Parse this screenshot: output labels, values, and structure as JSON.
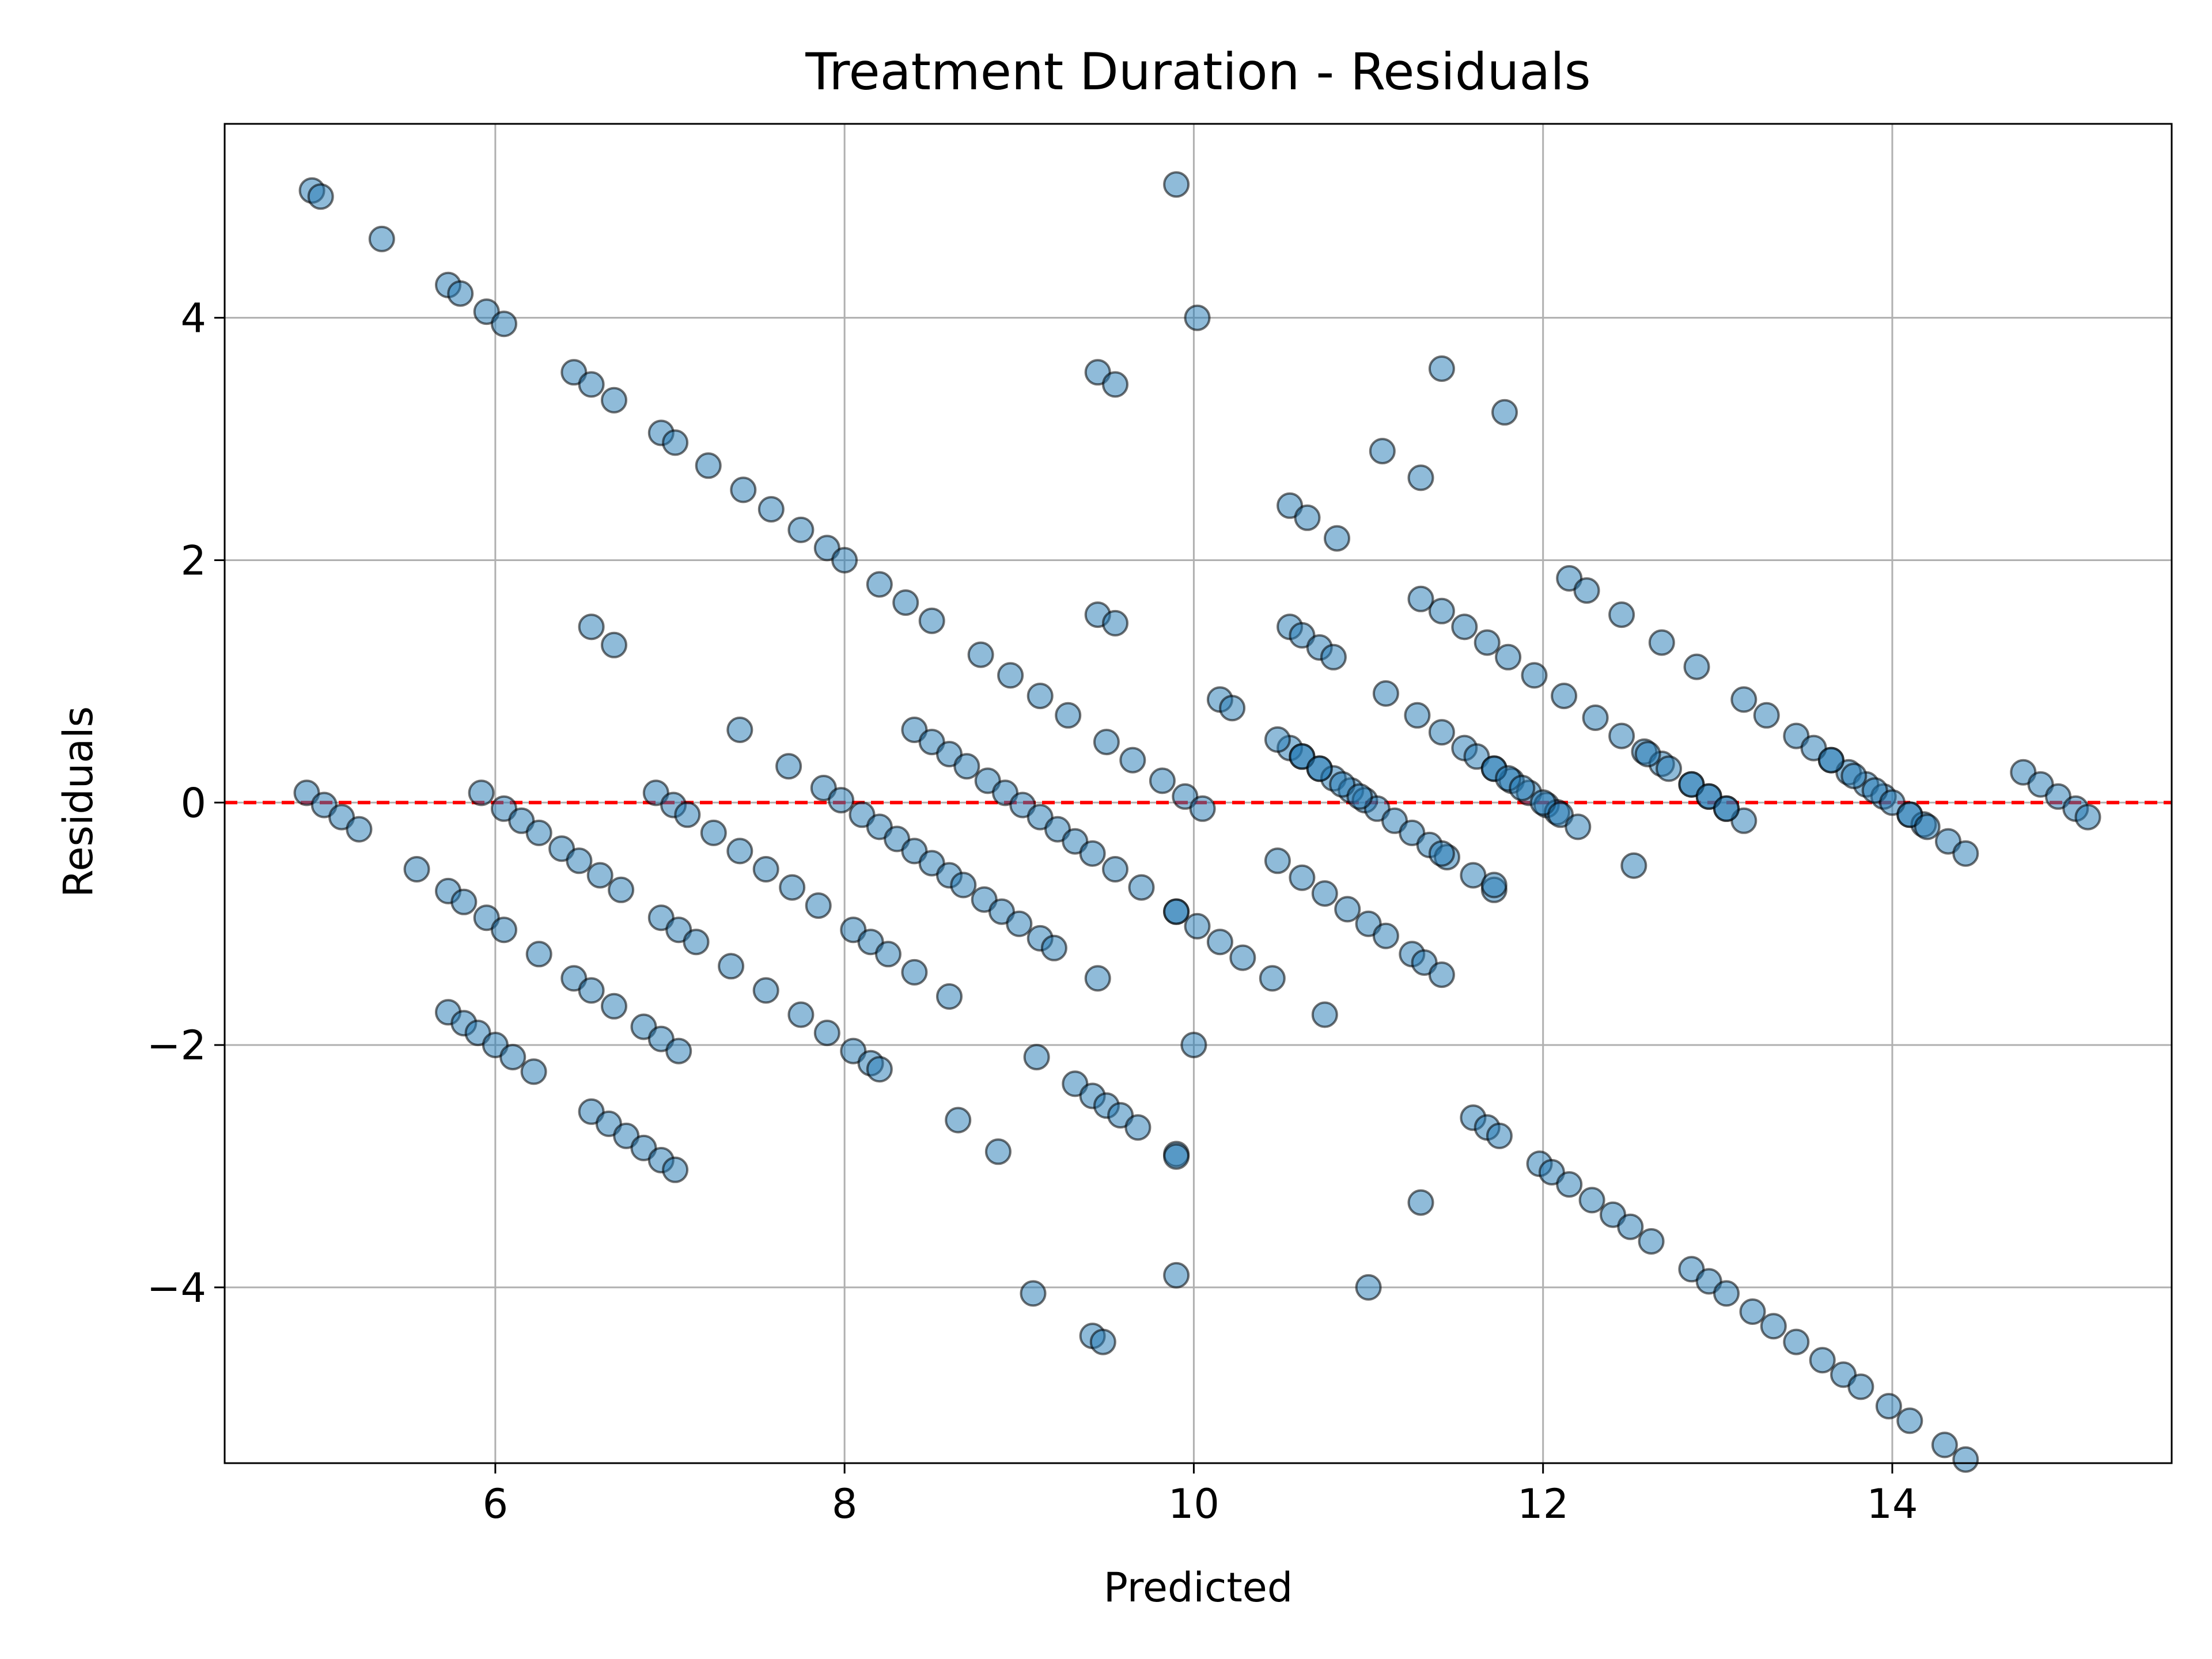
{
  "chart_data": {
    "type": "scatter",
    "title": "Treatment Duration - Residuals",
    "xlabel": "Predicted",
    "ylabel": "Residuals",
    "xlim": [
      4.45,
      15.6
    ],
    "ylim": [
      -5.45,
      5.6
    ],
    "xticks": [
      6,
      8,
      10,
      12,
      14
    ],
    "yticks": [
      -4,
      -2,
      0,
      2,
      4
    ],
    "xtick_labels": [
      "6",
      "8",
      "10",
      "12",
      "14"
    ],
    "ytick_labels": [
      "−4",
      "−2",
      "0",
      "2",
      "4"
    ],
    "grid": true,
    "reference_line": {
      "y": 0,
      "style": "dashed",
      "color": "#ff0000"
    },
    "colors": {
      "marker": "#1f77b4",
      "marker_edge": "#000000",
      "grid": "#b0b0b0"
    },
    "band_rule": "residual = actual_integer - predicted; points lie on diagonal lines",
    "bands": [
      {
        "actual": 10,
        "x": [
          4.95,
          5.0,
          5.35,
          5.73,
          5.8,
          5.95,
          6.05,
          6.45,
          6.55,
          6.68,
          6.95,
          7.03,
          7.22,
          7.42,
          7.58,
          7.75,
          7.9,
          8.0,
          8.2,
          8.35,
          8.5,
          8.78,
          8.95,
          9.12,
          9.28,
          9.5,
          9.65,
          9.82,
          9.95,
          10.05
        ]
      },
      {
        "actual": 5,
        "x": [
          4.92,
          5.02,
          5.12,
          5.22,
          5.55,
          5.73,
          5.82,
          5.95,
          6.05,
          6.25,
          6.45,
          6.55,
          6.68,
          6.85,
          6.95,
          7.05
        ]
      },
      {
        "actual": 4,
        "x": [
          5.73,
          5.82,
          5.9,
          6.0,
          6.1,
          6.22,
          6.55,
          6.65,
          6.75,
          6.85,
          6.95,
          7.03
        ]
      },
      {
        "actual": 6,
        "x": [
          5.92,
          6.05,
          6.15,
          6.25,
          6.38,
          6.48,
          6.6,
          6.72,
          6.95,
          7.05,
          7.15,
          7.35,
          7.55,
          7.75,
          7.9,
          8.05,
          8.15,
          8.2
        ]
      },
      {
        "actual": 7,
        "x": [
          6.92,
          7.02,
          7.1,
          7.25,
          7.4,
          7.55,
          7.7,
          7.85,
          8.05,
          8.15,
          8.25,
          8.4
        ]
      },
      {
        "actual": 8,
        "x": [
          7.88,
          7.98,
          8.1,
          8.2,
          8.3,
          8.4,
          8.5,
          8.6,
          8.68,
          8.8,
          8.9,
          9.0,
          9.12,
          9.2
        ]
      },
      {
        "actual": 9,
        "x": [
          8.4,
          8.5,
          8.6,
          8.7,
          8.82,
          8.92,
          9.02,
          9.12,
          9.22,
          9.32,
          9.42,
          9.55,
          9.7
        ]
      },
      {
        "actual": 7,
        "x": [
          9.32,
          9.42,
          9.5,
          9.58,
          9.68,
          9.9
        ]
      },
      {
        "actual": 11,
        "x": [
          10.55,
          10.62,
          10.72,
          10.8,
          10.9,
          10.98,
          11.05
        ]
      },
      {
        "actual": 12,
        "x": [
          11.55,
          11.62,
          11.72,
          11.82,
          11.92,
          12.02,
          12.08
        ]
      },
      {
        "actual": 13,
        "x": [
          12.58,
          12.68,
          12.85,
          12.95,
          13.05,
          13.15
        ]
      },
      {
        "actual": 14,
        "x": [
          13.65,
          13.75,
          13.85,
          13.95,
          14.1,
          14.18
        ]
      },
      {
        "actual": 15,
        "x": [
          14.75,
          14.85,
          14.95,
          15.05,
          15.12
        ]
      },
      {
        "actual": 12,
        "x": [
          10.55,
          10.62,
          10.72,
          10.8,
          11.1,
          11.28,
          11.42,
          11.72,
          11.8,
          11.88,
          12.0,
          12.1,
          12.2
        ]
      },
      {
        "actual": 13,
        "x": [
          11.42,
          11.55,
          11.68,
          11.8,
          11.95,
          12.12,
          12.3,
          12.45,
          12.6,
          12.72,
          12.85,
          12.95,
          13.05
        ]
      },
      {
        "actual": 14,
        "x": [
          12.15,
          12.25,
          12.45,
          12.68,
          12.88,
          13.15,
          13.28,
          13.45,
          13.55,
          13.65,
          13.78,
          13.9,
          14.0,
          14.1,
          14.2,
          14.32,
          14.42
        ]
      },
      {
        "actual": 11,
        "x": [
          10.48,
          10.62,
          10.72,
          10.85,
          10.95,
          11.15,
          11.25,
          11.35,
          11.45,
          11.6,
          11.72
        ]
      },
      {
        "actual": 10,
        "x": [
          10.48,
          10.62,
          10.75,
          10.88,
          11.0,
          11.1,
          11.25,
          11.32,
          11.42
        ]
      },
      {
        "actual": 9,
        "x": [
          9.9,
          10.02,
          10.15,
          10.28,
          10.45,
          11.6,
          11.68,
          11.75,
          11.98,
          12.05,
          12.15,
          12.28,
          12.4,
          12.5,
          12.62,
          12.85,
          12.95,
          13.05,
          13.2,
          13.32,
          13.45,
          13.6,
          13.72,
          13.82,
          13.98,
          14.1,
          14.3,
          14.42,
          14.92,
          15.0
        ]
      }
    ],
    "outliers": [
      {
        "x": 6.55,
        "y": 1.45
      },
      {
        "x": 6.68,
        "y": 1.3
      },
      {
        "x": 7.4,
        "y": 0.6
      },
      {
        "x": 7.68,
        "y": 0.3
      },
      {
        "x": 9.45,
        "y": 3.55
      },
      {
        "x": 9.55,
        "y": 3.45
      },
      {
        "x": 9.45,
        "y": 1.55
      },
      {
        "x": 9.55,
        "y": 1.48
      },
      {
        "x": 9.9,
        "y": 5.1
      },
      {
        "x": 10.02,
        "y": 4.0
      },
      {
        "x": 10.15,
        "y": 0.85
      },
      {
        "x": 10.22,
        "y": 0.78
      },
      {
        "x": 9.9,
        "y": -0.9
      },
      {
        "x": 10.0,
        "y": -2.0
      },
      {
        "x": 9.9,
        "y": -2.92
      },
      {
        "x": 9.9,
        "y": -3.9
      },
      {
        "x": 9.08,
        "y": -4.05
      },
      {
        "x": 9.1,
        "y": -2.1
      },
      {
        "x": 9.42,
        "y": -4.4
      },
      {
        "x": 9.48,
        "y": -4.45
      },
      {
        "x": 9.45,
        "y": -1.45
      },
      {
        "x": 8.6,
        "y": -1.6
      },
      {
        "x": 8.65,
        "y": -2.62
      },
      {
        "x": 8.88,
        "y": -2.88
      },
      {
        "x": 11.0,
        "y": -4.0
      },
      {
        "x": 11.3,
        "y": -3.3
      },
      {
        "x": 11.08,
        "y": 2.9
      },
      {
        "x": 11.3,
        "y": 2.68
      },
      {
        "x": 11.42,
        "y": 3.58
      },
      {
        "x": 11.78,
        "y": 3.22
      },
      {
        "x": 10.55,
        "y": 2.45
      },
      {
        "x": 10.65,
        "y": 2.35
      },
      {
        "x": 10.82,
        "y": 2.18
      },
      {
        "x": 11.3,
        "y": 1.68
      },
      {
        "x": 11.42,
        "y": -0.42
      },
      {
        "x": 12.52,
        "y": -0.52
      },
      {
        "x": 11.72,
        "y": -0.68
      },
      {
        "x": 10.75,
        "y": -1.75
      }
    ]
  }
}
